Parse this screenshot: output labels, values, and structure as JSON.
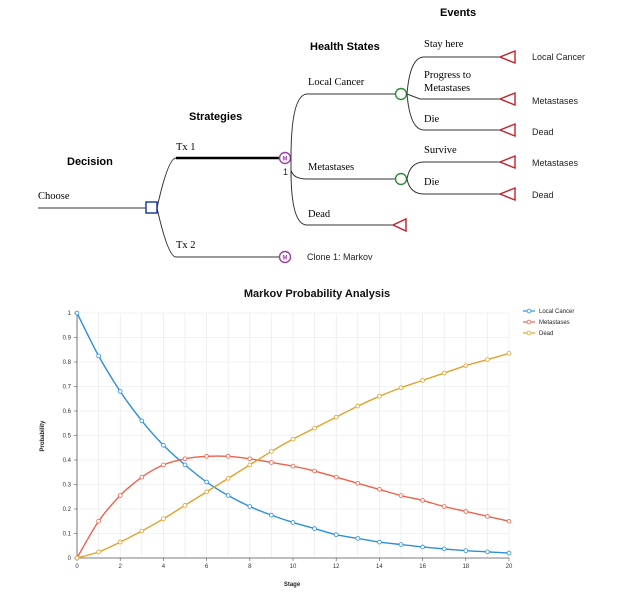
{
  "tree": {
    "headers": {
      "decision": "Decision",
      "strategies": "Strategies",
      "health_states": "Health States",
      "events": "Events"
    },
    "root_label": "Choose",
    "strategy_1": "Tx 1",
    "strategy_2": "Tx 2",
    "markov_index": "1",
    "clone_label": "Clone 1: Markov",
    "markov_glyph": "M",
    "states": {
      "local_cancer": "Local Cancer",
      "metastases": "Metastases",
      "dead": "Dead"
    },
    "events": {
      "stay_here": "Stay here",
      "progress_line1": "Progress to",
      "progress_line2": "Metastases",
      "die": "Die",
      "survive": "Survive",
      "die2": "Die"
    },
    "terminals": {
      "t1": "Local Cancer",
      "t2": "Metastases",
      "t3": "Dead",
      "t4": "Metastases",
      "t5": "Dead"
    },
    "colors": {
      "decision_node": "#1f3fa8",
      "chance_node": "#2e8b3a",
      "markov_node": "#9b3fa3",
      "terminal_node": "#c0202a"
    }
  },
  "chart_data": {
    "type": "line",
    "title": "Markov Probability Analysis",
    "xlabel": "Stage",
    "ylabel": "Probability",
    "xlim": [
      0,
      20
    ],
    "ylim": [
      0,
      1
    ],
    "grid": true,
    "legend_position": "top-right",
    "x": [
      0,
      1,
      2,
      3,
      4,
      5,
      6,
      7,
      8,
      9,
      10,
      11,
      12,
      13,
      14,
      15,
      16,
      17,
      18,
      19,
      20
    ],
    "x_ticks": [
      "0",
      "2",
      "4",
      "6",
      "8",
      "10",
      "12",
      "14",
      "16",
      "18",
      "20"
    ],
    "y_ticks": [
      "0",
      "0.1",
      "0.2",
      "0.3",
      "0.4",
      "0.5",
      "0.6",
      "0.7",
      "0.8",
      "0.9",
      "1"
    ],
    "series": [
      {
        "name": "Local Cancer",
        "color": "#2b8fe0",
        "values": [
          1.0,
          0.825,
          0.68,
          0.56,
          0.46,
          0.38,
          0.31,
          0.255,
          0.21,
          0.175,
          0.145,
          0.12,
          0.095,
          0.08,
          0.065,
          0.055,
          0.045,
          0.037,
          0.03,
          0.025,
          0.02
        ]
      },
      {
        "name": "Metastases",
        "color": "#f0604a",
        "values": [
          0.0,
          0.15,
          0.255,
          0.33,
          0.38,
          0.405,
          0.415,
          0.415,
          0.405,
          0.39,
          0.375,
          0.355,
          0.33,
          0.305,
          0.28,
          0.255,
          0.235,
          0.21,
          0.19,
          0.17,
          0.15
        ]
      },
      {
        "name": "Dead",
        "color": "#e0a32a",
        "values": [
          0.0,
          0.025,
          0.065,
          0.11,
          0.16,
          0.215,
          0.27,
          0.325,
          0.38,
          0.435,
          0.485,
          0.53,
          0.575,
          0.62,
          0.66,
          0.695,
          0.725,
          0.755,
          0.785,
          0.81,
          0.835
        ]
      }
    ]
  }
}
